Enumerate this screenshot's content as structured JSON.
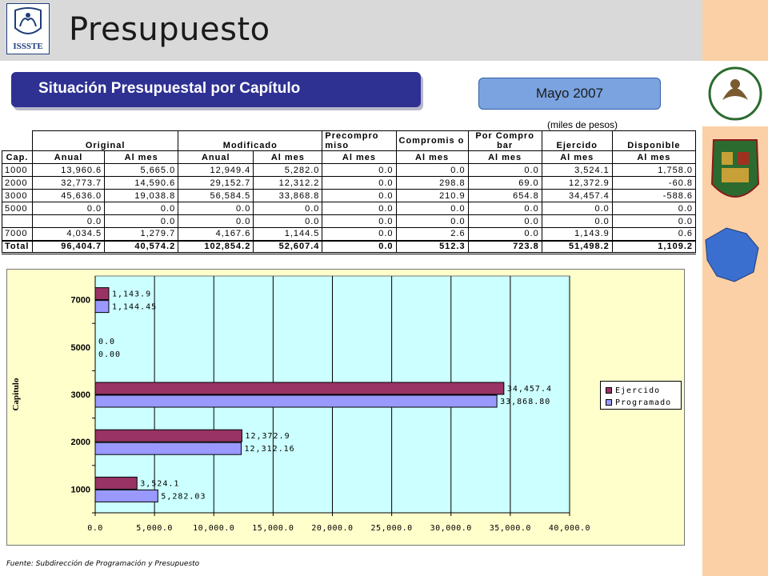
{
  "header": {
    "title": "Presupuesto",
    "logo_text": "ISSSTE"
  },
  "subtitle": "Situación Presupuestal por Capítulo",
  "month": "Mayo 2007",
  "units_note": "(miles de pesos)",
  "table": {
    "group_headers": [
      "Cap.",
      "Original",
      "Modificado",
      "Precompro miso",
      "Compromis o",
      "Por Compro bar",
      "Ejercido",
      "Disponible"
    ],
    "sub_headers": [
      "Anual",
      "Al mes",
      "Anual",
      "Al mes",
      "Al mes",
      "Al mes",
      "Al mes",
      "Al mes",
      "Al mes"
    ],
    "rows": [
      [
        "1000",
        "13,960.6",
        "5,665.0",
        "12,949.4",
        "5,282.0",
        "0.0",
        "0.0",
        "0.0",
        "3,524.1",
        "1,758.0"
      ],
      [
        "2000",
        "32,773.7",
        "14,590.6",
        "29,152.7",
        "12,312.2",
        "0.0",
        "298.8",
        "69.0",
        "12,372.9",
        "-60.8"
      ],
      [
        "3000",
        "45,636.0",
        "19,038.8",
        "56,584.5",
        "33,868.8",
        "0.0",
        "210.9",
        "654.8",
        "34,457.4",
        "-588.6"
      ],
      [
        "5000",
        "0.0",
        "0.0",
        "0.0",
        "0.0",
        "0.0",
        "0.0",
        "0.0",
        "0.0",
        "0.0"
      ],
      [
        "",
        "0.0",
        "0.0",
        "0.0",
        "0.0",
        "0.0",
        "0.0",
        "0.0",
        "0.0",
        "0.0"
      ],
      [
        "7000",
        "4,034.5",
        "1,279.7",
        "4,167.6",
        "1,144.5",
        "0.0",
        "2.6",
        "0.0",
        "1,143.9",
        "0.6"
      ]
    ],
    "total": [
      "Total",
      "96,404.7",
      "40,574.2",
      "102,854.2",
      "52,607.4",
      "0.0",
      "512.3",
      "723.8",
      "51,498.2",
      "1,109.2"
    ]
  },
  "chart_data": {
    "type": "bar",
    "orientation": "horizontal",
    "categories": [
      "7000",
      "5000",
      "3000",
      "2000",
      "1000"
    ],
    "series": [
      {
        "name": "Ejercido",
        "color": "#993366",
        "values": [
          1143.9,
          0.0,
          34457.4,
          12372.9,
          3524.1
        ],
        "labels": [
          "1,143.9",
          "0.0",
          "34,457.4",
          "12,372.9",
          "3,524.1"
        ]
      },
      {
        "name": "Programado",
        "color": "#9999ff",
        "values": [
          1144.45,
          0.0,
          33868.8,
          12312.16,
          5282.03
        ],
        "labels": [
          "1,144.45",
          "0.00",
          "33,868.80",
          "12,312.16",
          "5,282.03"
        ]
      }
    ],
    "xlim": [
      0,
      40000
    ],
    "xticks": [
      "0.0",
      "5,000.0",
      "10,000.0",
      "15,000.0",
      "20,000.0",
      "25,000.0",
      "30,000.0",
      "35,000.0",
      "40,000.0"
    ],
    "ylabel": "Capitulo",
    "plot_background": "#ccffff",
    "chart_background": "#ffffcc",
    "legend_position": "right",
    "grid": true
  },
  "source": "Fuente: Subdirección de Programación y Presupuesto"
}
